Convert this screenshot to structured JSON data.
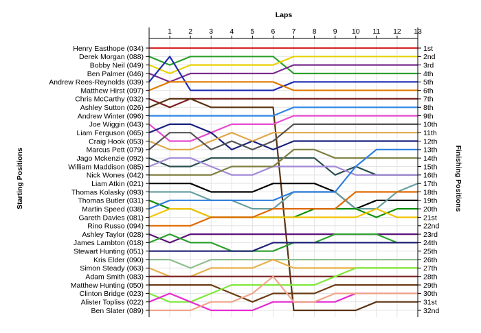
{
  "chart_data": {
    "type": "line",
    "title": "",
    "top_axis_label": "Laps",
    "left_axis_label": "Starting Positions",
    "right_axis_label": "Finishing Positions",
    "laps": [
      0,
      1,
      2,
      3,
      4,
      5,
      6,
      7,
      8,
      9,
      10,
      11,
      12,
      13
    ],
    "lap_tick_labels": [
      "1",
      "2",
      "3",
      "4",
      "5",
      "6",
      "7",
      "8",
      "9",
      "10",
      "11",
      "12",
      "13"
    ],
    "finish_labels": [
      "1st",
      "2nd",
      "3rd",
      "4th",
      "5th",
      "6th",
      "7th",
      "8th",
      "9th",
      "10th",
      "11th",
      "12th",
      "13th",
      "14th",
      "15th",
      "16th",
      "17th",
      "18th",
      "19th",
      "20th",
      "21st",
      "22nd",
      "23rd",
      "24th",
      "25th",
      "26th",
      "27th",
      "28th",
      "29th",
      "30th",
      "31st",
      "32nd"
    ],
    "grid": true,
    "series": [
      {
        "name": "Henry Easthope (034)",
        "color": "#d62728",
        "positions": [
          1,
          1,
          1,
          1,
          1,
          1,
          1,
          1,
          1,
          1,
          1,
          1,
          1,
          1
        ]
      },
      {
        "name": "Derek Morgan (088)",
        "color": "#2ca02c",
        "positions": [
          2,
          3,
          2,
          2,
          2,
          2,
          2,
          4,
          4,
          4,
          4,
          4,
          4,
          4
        ]
      },
      {
        "name": "Bobby Neil (049)",
        "color": "#e8d200",
        "positions": [
          3,
          4,
          3,
          3,
          3,
          3,
          3,
          2,
          2,
          2,
          2,
          2,
          2,
          2
        ]
      },
      {
        "name": "Ben Palmer (046)",
        "color": "#7b2c8e",
        "positions": [
          4,
          5,
          4,
          4,
          4,
          4,
          4,
          3,
          3,
          3,
          3,
          3,
          3,
          3
        ]
      },
      {
        "name": "Andrew Rees-Reynolds (039)",
        "color": "#1f2bb3",
        "positions": [
          5,
          2,
          6,
          6,
          6,
          6,
          6,
          5,
          5,
          5,
          5,
          5,
          5,
          5
        ]
      },
      {
        "name": "Matthew Hirst (097)",
        "color": "#e07b00",
        "positions": [
          6,
          5,
          5,
          5,
          5,
          5,
          5,
          6,
          6,
          6,
          6,
          6,
          6,
          6
        ]
      },
      {
        "name": "Chris McCarthy (032)",
        "color": "#7a1f1f",
        "positions": [
          7,
          8,
          7,
          7,
          7,
          7,
          7,
          7,
          7,
          7,
          7,
          7,
          7,
          7
        ]
      },
      {
        "name": "Ashley Sutton (026)",
        "color": "#5b3311",
        "positions": [
          8,
          7,
          7,
          8,
          8,
          8,
          8,
          32,
          32,
          32,
          32,
          31,
          31,
          31
        ]
      },
      {
        "name": "Andrew Winter (096)",
        "color": "#2f87e6",
        "positions": [
          9,
          9,
          9,
          9,
          9,
          9,
          9,
          8,
          8,
          8,
          8,
          8,
          8,
          8
        ]
      },
      {
        "name": "Joe Wiggin (043)",
        "color": "#e64bd0",
        "positions": [
          10,
          12,
          12,
          11,
          10,
          10,
          10,
          9,
          9,
          9,
          9,
          9,
          9,
          9
        ]
      },
      {
        "name": "Liam Ferguson (065)",
        "color": "#1a237e",
        "positions": [
          11,
          10,
          10,
          11,
          13,
          12,
          13,
          12,
          12,
          12,
          12,
          12,
          12,
          12
        ]
      },
      {
        "name": "Craig Hook (053)",
        "color": "#e0a84b",
        "positions": [
          12,
          13,
          13,
          12,
          11,
          12,
          11,
          11,
          11,
          11,
          11,
          11,
          11,
          11
        ]
      },
      {
        "name": "Marcus Pett (079)",
        "color": "#555555",
        "positions": [
          13,
          11,
          11,
          13,
          12,
          13,
          12,
          10,
          10,
          10,
          10,
          10,
          10,
          10
        ]
      },
      {
        "name": "Jago Mckenzie (092)",
        "color": "#2a4d4f",
        "positions": [
          14,
          15,
          15,
          14,
          14,
          14,
          14,
          14,
          14,
          16,
          15,
          16,
          16,
          16
        ]
      },
      {
        "name": "William Maddison (085)",
        "color": "#a28ad6",
        "positions": [
          15,
          14,
          14,
          15,
          16,
          16,
          15,
          15,
          15,
          15,
          16,
          16,
          16,
          16
        ]
      },
      {
        "name": "Nick Wones (042)",
        "color": "#7f7f40",
        "positions": [
          16,
          16,
          16,
          16,
          15,
          15,
          15,
          13,
          13,
          14,
          14,
          14,
          14,
          14
        ]
      },
      {
        "name": "Liam Atkin (021)",
        "color": "#000000",
        "positions": [
          17,
          17,
          17,
          18,
          18,
          18,
          17,
          17,
          17,
          18,
          20,
          19,
          19,
          19
        ]
      },
      {
        "name": "Thomas Kolasky (093)",
        "color": "#6a9fa0",
        "positions": [
          18,
          18,
          18,
          19,
          19,
          20,
          20,
          18,
          18,
          18,
          20,
          20,
          18,
          17
        ]
      },
      {
        "name": "Thomas Butler (031)",
        "color": "#0f8f00",
        "positions": [
          19,
          20,
          20,
          21,
          21,
          21,
          21,
          21,
          20,
          20,
          20,
          21,
          20,
          20
        ]
      },
      {
        "name": "Martin Speed (038)",
        "color": "#3080e0",
        "positions": [
          20,
          19,
          19,
          19,
          19,
          19,
          19,
          18,
          18,
          18,
          15,
          13,
          13,
          13
        ]
      },
      {
        "name": "Gareth Davies (081)",
        "color": "#f3c400",
        "positions": [
          21,
          20,
          20,
          21,
          21,
          21,
          21,
          21,
          21,
          21,
          21,
          20,
          21,
          21
        ]
      },
      {
        "name": "Rino Russo (094)",
        "color": "#e06a00",
        "positions": [
          22,
          22,
          22,
          21,
          21,
          21,
          20,
          20,
          20,
          20,
          18,
          18,
          18,
          18
        ]
      },
      {
        "name": "Ashley Taylor (028)",
        "color": "#5b0f7a",
        "positions": [
          23,
          24,
          23,
          23,
          23,
          23,
          23,
          23,
          23,
          23,
          23,
          23,
          23,
          23
        ]
      },
      {
        "name": "James Lambton (018)",
        "color": "#2ca02c",
        "positions": [
          24,
          23,
          24,
          24,
          25,
          25,
          25,
          24,
          24,
          23,
          23,
          23,
          24,
          24
        ]
      },
      {
        "name": "Stewart Hunting (051)",
        "color": "#22227a",
        "positions": [
          25,
          25,
          25,
          25,
          25,
          25,
          24,
          24,
          24,
          24,
          24,
          24,
          24,
          24
        ]
      },
      {
        "name": "Kris Elder (090)",
        "color": "#8fbe8f",
        "positions": [
          26,
          26,
          27,
          26,
          26,
          26,
          26,
          26,
          26,
          26,
          26,
          26,
          26,
          26
        ]
      },
      {
        "name": "Simon Steady (063)",
        "color": "#e8b04a",
        "positions": [
          27,
          28,
          28,
          27,
          27,
          27,
          26,
          27,
          27,
          27,
          27,
          27,
          27,
          27
        ]
      },
      {
        "name": "Adam Smith (083)",
        "color": "#7a1f1f",
        "positions": [
          28,
          28,
          28,
          28,
          28,
          28,
          28,
          28,
          28,
          28,
          28,
          28,
          28,
          28
        ]
      },
      {
        "name": "Matthew Hunting (050)",
        "color": "#6b3a12",
        "positions": [
          29,
          29,
          29,
          29,
          30,
          31,
          30,
          30,
          30,
          29,
          29,
          29,
          29,
          29
        ]
      },
      {
        "name": "Clinton Bridge (023)",
        "color": "#7fe83a",
        "positions": [
          30,
          31,
          31,
          30,
          29,
          29,
          29,
          29,
          29,
          28,
          27,
          27,
          27,
          27
        ]
      },
      {
        "name": "Alister Topliss (022)",
        "color": "#e62ad0",
        "positions": [
          31,
          30,
          31,
          32,
          32,
          32,
          31,
          31,
          31,
          31,
          30,
          30,
          30,
          30
        ]
      },
      {
        "name": "Ben Slater (089)",
        "color": "#f0a58a",
        "positions": [
          32,
          32,
          32,
          31,
          31,
          30,
          28,
          31,
          31,
          30,
          30,
          30,
          30,
          30
        ]
      }
    ]
  }
}
